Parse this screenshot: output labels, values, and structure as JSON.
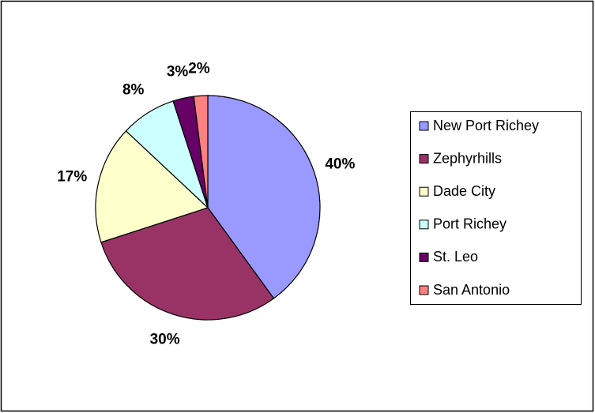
{
  "chart_data": {
    "type": "pie",
    "categories": [
      "New Port Richey",
      "Zephyrhills",
      "Dade City",
      "Port Richey",
      "St. Leo",
      "San Antonio"
    ],
    "values": [
      40,
      30,
      17,
      8,
      3,
      2
    ],
    "value_labels": [
      "40%",
      "30%",
      "17%",
      "8%",
      "3%",
      "2%"
    ],
    "colors": [
      "#9999ff",
      "#993366",
      "#ffffcc",
      "#ccffff",
      "#660066",
      "#ff8080"
    ],
    "legend": "right"
  }
}
